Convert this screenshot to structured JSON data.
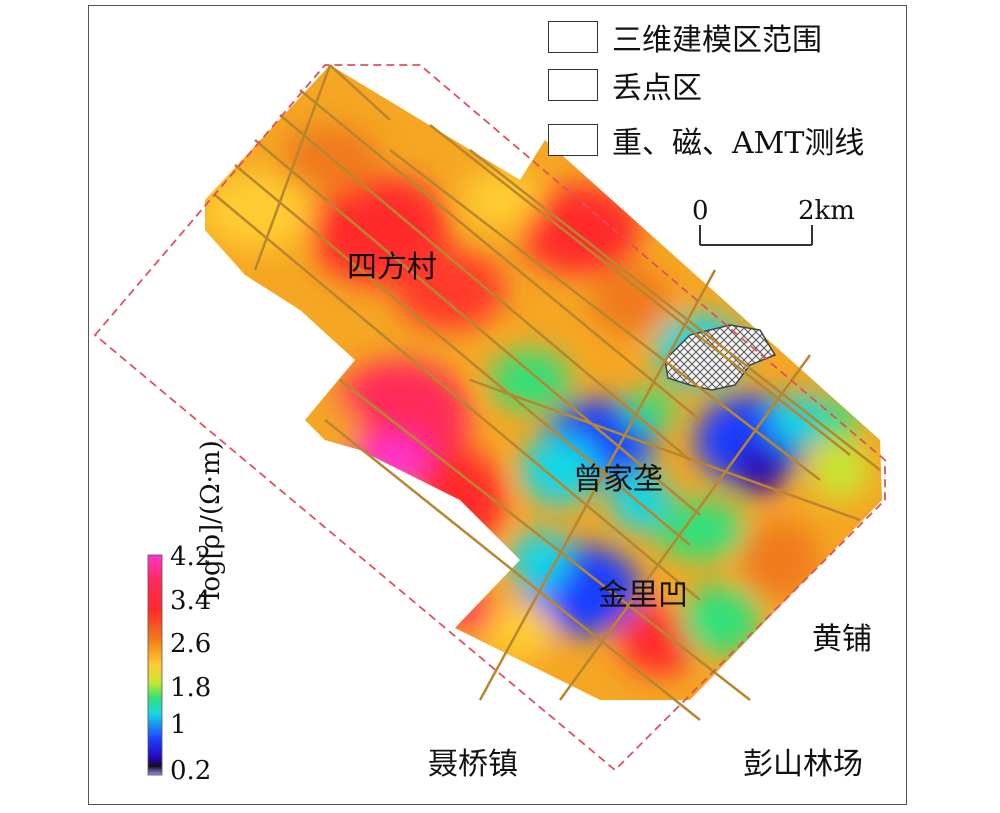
{
  "legend": {
    "modeling_area": "三维建模区范围",
    "lost_point_area": "丢点区",
    "survey_lines": "重、磁、AMT测线"
  },
  "scale_bar": {
    "start": "0",
    "end": "2km"
  },
  "places": {
    "sifangcun": "四方村",
    "zengjiaping": "曾家垄",
    "jinlitu": "金里凹",
    "huangpu": "黄铺",
    "nieqiaozhen": "聂桥镇",
    "pengshanlinchang": "彭山林场"
  },
  "colorbar": {
    "title": "log[ρ]/(Ω·m)",
    "ticks": [
      "4.2",
      "3.4",
      "2.6",
      "1.8",
      "1",
      "0.2"
    ],
    "colors": [
      "#ff33cc",
      "#ff2a2a",
      "#f07a1a",
      "#ffcc33",
      "#c8e632",
      "#33e07a",
      "#19d6e6",
      "#1e3cff",
      "#2a00b0",
      "#9b8cff"
    ]
  },
  "colors": {
    "boundary": "#e05060",
    "survey_line": "#b8862e",
    "scale_bar": "#333333"
  }
}
